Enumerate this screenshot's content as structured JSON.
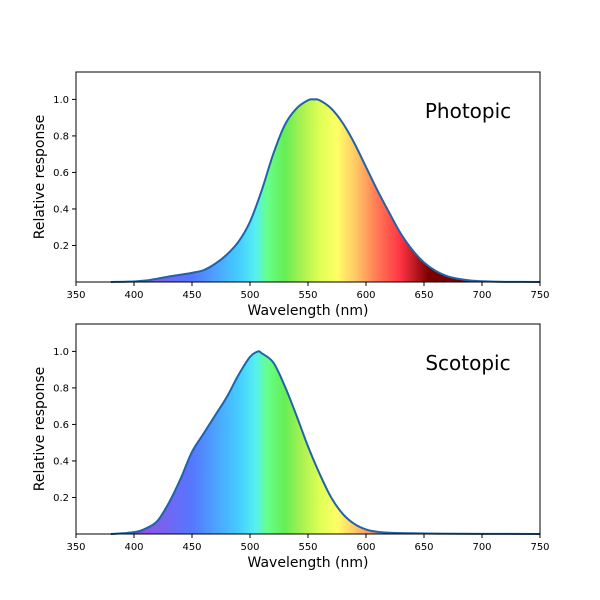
{
  "chart_data": [
    {
      "type": "area",
      "annotation": "Photopic",
      "xlabel": "Wavelength (nm)",
      "ylabel": "Relative response",
      "xlim": [
        350,
        750
      ],
      "ylim": [
        0,
        1.15
      ],
      "xticks": [
        350,
        400,
        450,
        500,
        550,
        600,
        650,
        700,
        750
      ],
      "yticks": [
        0.2,
        0.4,
        0.6,
        0.8,
        1.0
      ],
      "ytick_labels": [
        "0.2",
        "0.4",
        "0.6",
        "0.8",
        "1.0"
      ],
      "grid": false,
      "fill": "visible-spectrum gradient under curve",
      "line_color": "#1f63a8",
      "x": [
        380,
        400,
        410,
        420,
        430,
        440,
        450,
        460,
        470,
        480,
        490,
        500,
        510,
        520,
        530,
        540,
        550,
        555,
        560,
        570,
        580,
        590,
        600,
        610,
        620,
        630,
        640,
        650,
        660,
        670,
        680,
        690,
        700,
        720,
        750
      ],
      "y": [
        0.0,
        0.003,
        0.008,
        0.018,
        0.03,
        0.04,
        0.05,
        0.065,
        0.1,
        0.15,
        0.22,
        0.33,
        0.5,
        0.7,
        0.86,
        0.95,
        0.995,
        1.0,
        0.995,
        0.95,
        0.87,
        0.76,
        0.63,
        0.5,
        0.38,
        0.265,
        0.175,
        0.107,
        0.061,
        0.032,
        0.017,
        0.008,
        0.004,
        0.001,
        0.0
      ]
    },
    {
      "type": "area",
      "annotation": "Scotopic",
      "xlabel": "Wavelength (nm)",
      "ylabel": "Relative response",
      "xlim": [
        350,
        750
      ],
      "ylim": [
        0,
        1.15
      ],
      "xticks": [
        350,
        400,
        450,
        500,
        550,
        600,
        650,
        700,
        750
      ],
      "yticks": [
        0.2,
        0.4,
        0.6,
        0.8,
        1.0
      ],
      "ytick_labels": [
        "0.2",
        "0.4",
        "0.6",
        "0.8",
        "1.0"
      ],
      "grid": false,
      "fill": "visible-spectrum gradient under curve",
      "line_color": "#1f63a8",
      "x": [
        380,
        400,
        410,
        420,
        430,
        440,
        450,
        460,
        470,
        480,
        490,
        500,
        507,
        510,
        520,
        530,
        540,
        550,
        560,
        570,
        580,
        590,
        600,
        610,
        620,
        640,
        660,
        700,
        750
      ],
      "y": [
        0.0,
        0.01,
        0.03,
        0.07,
        0.17,
        0.3,
        0.45,
        0.55,
        0.65,
        0.75,
        0.87,
        0.97,
        1.0,
        0.99,
        0.94,
        0.81,
        0.65,
        0.48,
        0.33,
        0.2,
        0.11,
        0.055,
        0.025,
        0.012,
        0.007,
        0.004,
        0.002,
        0.001,
        0.0
      ]
    }
  ]
}
